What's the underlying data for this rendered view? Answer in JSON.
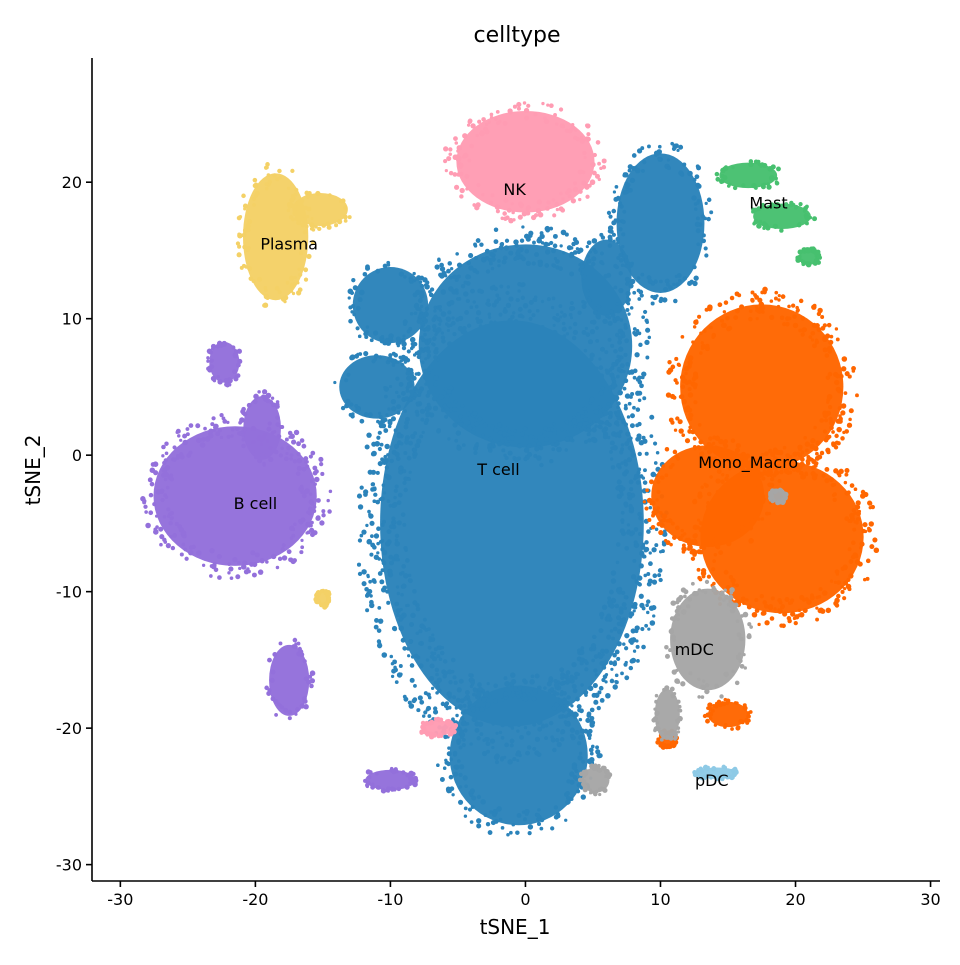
{
  "chart_data": {
    "type": "scatter",
    "title": "celltype",
    "xlabel": "tSNE_1",
    "ylabel": "tSNE_2",
    "xlim": [
      -32.1,
      30.7
    ],
    "ylim": [
      -31.2,
      29.1
    ],
    "x_ticks": [
      {
        "value": -30,
        "label": "-30"
      },
      {
        "value": -20,
        "label": "-20"
      },
      {
        "value": -10,
        "label": "-10"
      },
      {
        "value": 0,
        "label": "0"
      },
      {
        "value": 10,
        "label": "10"
      },
      {
        "value": 20,
        "label": "20"
      },
      {
        "value": 30,
        "label": "30"
      }
    ],
    "y_ticks": [
      {
        "value": -30,
        "label": "-30"
      },
      {
        "value": -20,
        "label": "-20"
      },
      {
        "value": -10,
        "label": "-10"
      },
      {
        "value": 0,
        "label": "0"
      },
      {
        "value": 10,
        "label": "10"
      },
      {
        "value": 20,
        "label": "20"
      }
    ],
    "grid": false,
    "legend": "none",
    "clusters": [
      {
        "name": "T cell",
        "color": "#2B83BA",
        "label_pos": [
          -2,
          -1
        ],
        "regions": [
          {
            "center": [
              -1,
              -5
            ],
            "radius": [
              10.5,
              16
            ]
          },
          {
            "center": [
              0,
              8
            ],
            "radius": [
              8.5,
              8
            ]
          },
          {
            "center": [
              -0.5,
              -22
            ],
            "radius": [
              5.5,
              5.5
            ]
          },
          {
            "center": [
              -11,
              5
            ],
            "radius": [
              3,
              2.5
            ]
          },
          {
            "center": [
              10,
              17
            ],
            "radius": [
              3.5,
              5.5
            ]
          },
          {
            "center": [
              6,
              13
            ],
            "radius": [
              2,
              3
            ]
          },
          {
            "center": [
              -10,
              11
            ],
            "radius": [
              3,
              3
            ]
          }
        ]
      },
      {
        "name": "NK",
        "color": "#FF9CB3",
        "label_pos": [
          -0.8,
          19.5
        ],
        "regions": [
          {
            "center": [
              0,
              21.5
            ],
            "radius": [
              5.5,
              4
            ]
          },
          {
            "center": [
              -6.5,
              -20
            ],
            "radius": [
              1.3,
              0.6
            ]
          }
        ]
      },
      {
        "name": "Plasma",
        "color": "#F4D166",
        "label_pos": [
          -17.5,
          15.5
        ],
        "regions": [
          {
            "center": [
              -18.5,
              16
            ],
            "radius": [
              2.6,
              5
            ]
          },
          {
            "center": [
              -15.2,
              18
            ],
            "radius": [
              2.2,
              1.3
            ]
          },
          {
            "center": [
              -15,
              -10.5
            ],
            "radius": [
              0.5,
              0.6
            ]
          }
        ]
      },
      {
        "name": "B cell",
        "color": "#9370DB",
        "label_pos": [
          -20,
          -3.5
        ],
        "regions": [
          {
            "center": [
              -21.5,
              -3
            ],
            "radius": [
              6.5,
              5.5
            ]
          },
          {
            "center": [
              -19.5,
              2
            ],
            "radius": [
              1.5,
              2.5
            ]
          },
          {
            "center": [
              -22.3,
              6.8
            ],
            "radius": [
              1.2,
              1.6
            ]
          },
          {
            "center": [
              -17.5,
              -16.5
            ],
            "radius": [
              1.6,
              2.8
            ]
          },
          {
            "center": [
              -10,
              -23.8
            ],
            "radius": [
              2,
              0.8
            ]
          }
        ]
      },
      {
        "name": "Mast",
        "color": "#47C06F",
        "label_pos": [
          18,
          18.5
        ],
        "regions": [
          {
            "center": [
              16.5,
              20.5
            ],
            "radius": [
              2.3,
              1
            ]
          },
          {
            "center": [
              19,
              17.5
            ],
            "radius": [
              2.3,
              1
            ]
          },
          {
            "center": [
              21,
              14.5
            ],
            "radius": [
              0.8,
              0.6
            ]
          }
        ]
      },
      {
        "name": "Mono_Macro",
        "color": "#FF6600",
        "label_pos": [
          16.5,
          -0.5
        ],
        "regions": [
          {
            "center": [
              17.5,
              5
            ],
            "radius": [
              6.5,
              6.5
            ]
          },
          {
            "center": [
              19,
              -6
            ],
            "radius": [
              6.5,
              6
            ]
          },
          {
            "center": [
              13.5,
              -3
            ],
            "radius": [
              4.5,
              4
            ]
          },
          {
            "center": [
              15,
              -19
            ],
            "radius": [
              1.6,
              1
            ]
          },
          {
            "center": [
              10.5,
              -20.8
            ],
            "radius": [
              0.7,
              0.6
            ]
          }
        ]
      },
      {
        "name": "mDC",
        "color": "#A6A6A6",
        "label_pos": [
          12.5,
          -14.2
        ],
        "regions": [
          {
            "center": [
              13.5,
              -13.5
            ],
            "radius": [
              3,
              4
            ]
          },
          {
            "center": [
              10.5,
              -19
            ],
            "radius": [
              1,
              2
            ]
          },
          {
            "center": [
              5.2,
              -23.8
            ],
            "radius": [
              1.1,
              1
            ]
          },
          {
            "center": [
              18.7,
              -3
            ],
            "radius": [
              0.6,
              0.5
            ]
          }
        ]
      },
      {
        "name": "pDC",
        "color": "#8ECAE6",
        "label_pos": [
          13.8,
          -23.8
        ],
        "regions": [
          {
            "center": [
              14.2,
              -23.3
            ],
            "radius": [
              1.6,
              0.45
            ]
          }
        ]
      }
    ]
  }
}
